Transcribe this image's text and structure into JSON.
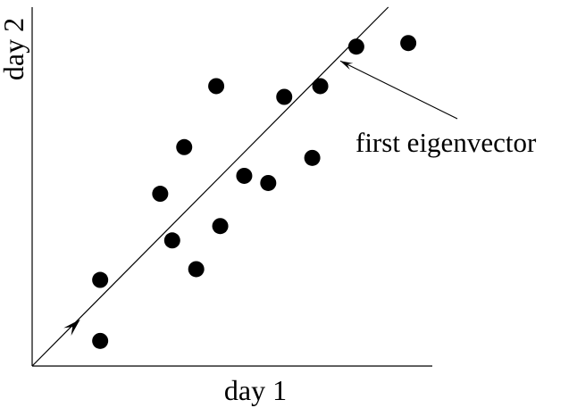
{
  "chart_data": {
    "type": "scatter",
    "xlabel": "day 1",
    "ylabel": "day 2",
    "xlim": [
      0,
      100
    ],
    "ylim": [
      0,
      100
    ],
    "points": [
      {
        "x": 17,
        "y": 24
      },
      {
        "x": 17,
        "y": 7
      },
      {
        "x": 32,
        "y": 48
      },
      {
        "x": 35,
        "y": 35
      },
      {
        "x": 38,
        "y": 61
      },
      {
        "x": 41,
        "y": 27
      },
      {
        "x": 46,
        "y": 78
      },
      {
        "x": 47,
        "y": 39
      },
      {
        "x": 53,
        "y": 53
      },
      {
        "x": 59,
        "y": 51
      },
      {
        "x": 63,
        "y": 75
      },
      {
        "x": 70,
        "y": 58
      },
      {
        "x": 72,
        "y": 78
      },
      {
        "x": 81,
        "y": 89
      },
      {
        "x": 94,
        "y": 90
      }
    ],
    "eigenvector_line": {
      "x": [
        0,
        89
      ],
      "y": [
        0,
        100
      ]
    },
    "eigenvector_arrow": {
      "from": [
        0,
        0
      ],
      "to": [
        12,
        13
      ]
    },
    "annotation": {
      "text": "first eigenvector",
      "points_to": [
        77,
        85
      ]
    },
    "grid": false,
    "legend": "none"
  }
}
